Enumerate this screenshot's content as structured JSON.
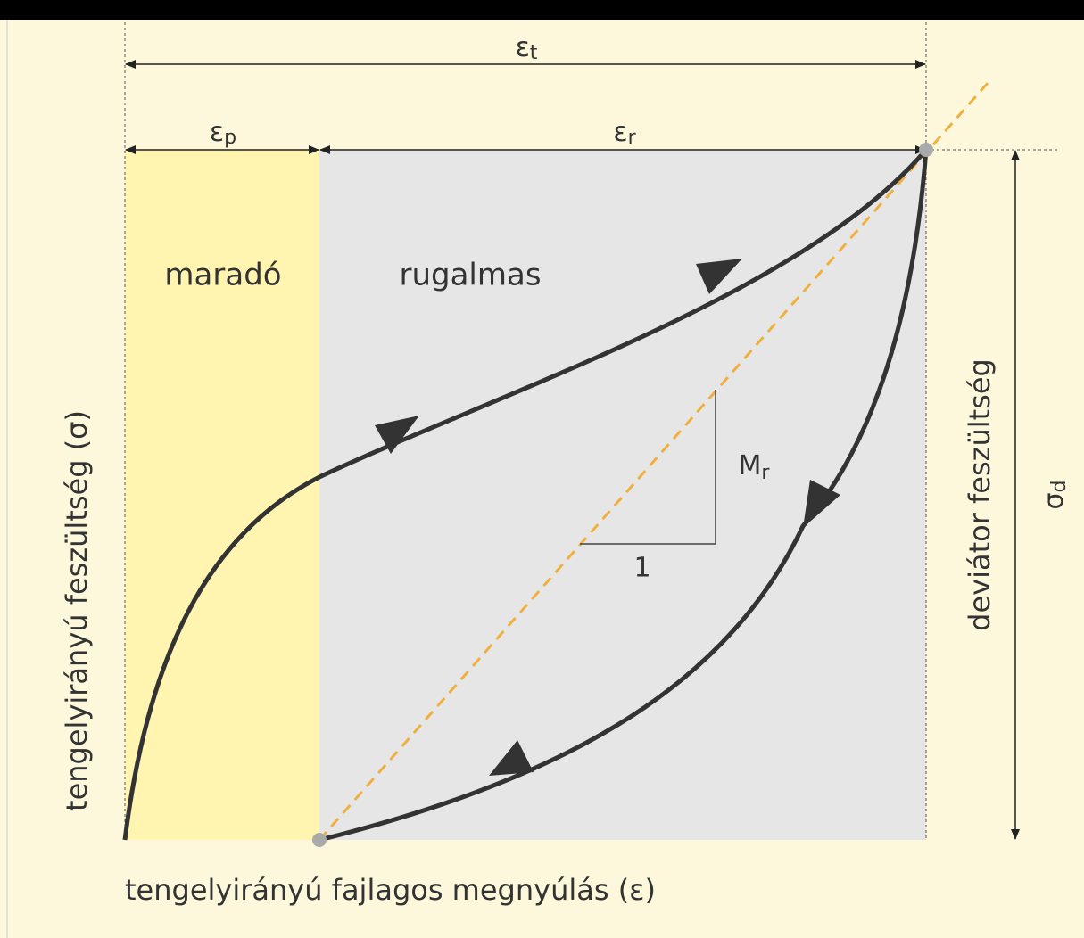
{
  "labels": {
    "total": {
      "symbol": "ε",
      "sub": "t"
    },
    "plastic": {
      "symbol": "ε",
      "sub": "p"
    },
    "resilient": {
      "symbol": "ε",
      "sub": "r"
    },
    "deviator": {
      "symbol": "σ",
      "sub": "d"
    },
    "modulus": {
      "symbol": "M",
      "sub": "r"
    },
    "unit": "1"
  },
  "regions": {
    "plastic": "maradó",
    "resilient": "rugalmas"
  },
  "axes": {
    "y": "tengelyirányú feszültség (σ)",
    "x": "tengelyirányú fajlagos megnyúlás (ε)",
    "right": "deviátor feszültség"
  }
}
